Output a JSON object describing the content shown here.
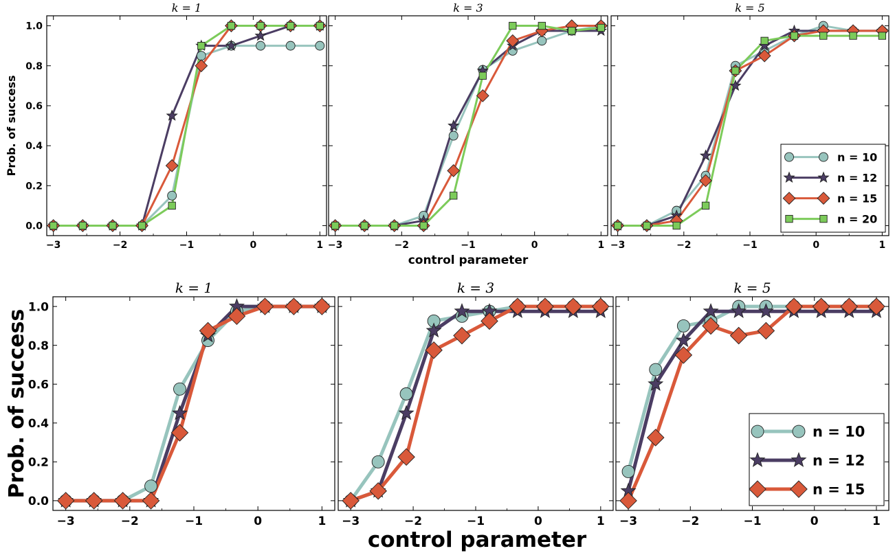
{
  "colors": {
    "n10": "#97c4bd",
    "n12": "#4b3d63",
    "n15": "#d9593a",
    "n20": "#7ccb5a"
  },
  "chart_data": [
    {
      "type": "line",
      "panel": "top-left",
      "title": "k = 1",
      "ylabel": "Prob. of success",
      "xlim": [
        -3.1,
        1.1
      ],
      "ylim": [
        -0.05,
        1.05
      ],
      "x": [
        -3,
        -2.56,
        -2.11,
        -1.67,
        -1.22,
        -0.78,
        -0.33,
        0.11,
        0.56,
        1
      ],
      "series": [
        {
          "name": "n = 10",
          "values": [
            0,
            0,
            0,
            0,
            0.15,
            0.85,
            0.9,
            0.9,
            0.9,
            0.9
          ]
        },
        {
          "name": "n = 12",
          "values": [
            0,
            0,
            0,
            0,
            0.55,
            0.9,
            0.9,
            0.95,
            1.0,
            1.0
          ]
        },
        {
          "name": "n = 15",
          "values": [
            0,
            0,
            0,
            0,
            0.3,
            0.8,
            1.0,
            1.0,
            1.0,
            1.0
          ]
        },
        {
          "name": "n = 20",
          "values": [
            0,
            0,
            0,
            0,
            0.1,
            0.9,
            1.0,
            1.0,
            1.0,
            1.0
          ]
        }
      ]
    },
    {
      "type": "line",
      "panel": "top-middle",
      "title": "k = 3",
      "xlabel": "control parameter",
      "xlim": [
        -3.1,
        1.1
      ],
      "ylim": [
        -0.05,
        1.05
      ],
      "x": [
        -3,
        -2.56,
        -2.11,
        -1.67,
        -1.22,
        -0.78,
        -0.33,
        0.11,
        0.56,
        1
      ],
      "series": [
        {
          "name": "n = 10",
          "values": [
            0,
            0,
            0,
            0.05,
            0.45,
            0.78,
            0.875,
            0.925,
            0.975,
            1.0
          ]
        },
        {
          "name": "n = 12",
          "values": [
            0,
            0,
            0,
            0.025,
            0.5,
            0.775,
            0.9,
            0.975,
            0.975,
            0.975
          ]
        },
        {
          "name": "n = 15",
          "values": [
            0,
            0,
            0,
            0,
            0.275,
            0.65,
            0.925,
            0.975,
            1.0,
            1.0
          ]
        },
        {
          "name": "n = 20",
          "values": [
            0,
            0,
            0,
            0,
            0.15,
            0.75,
            1.0,
            1.0,
            0.975,
            0.99
          ]
        }
      ]
    },
    {
      "type": "line",
      "panel": "top-right",
      "title": "k = 5",
      "legend": "bottom-right",
      "xlim": [
        -3.1,
        1.1
      ],
      "ylim": [
        -0.05,
        1.05
      ],
      "x": [
        -3,
        -2.56,
        -2.11,
        -1.67,
        -1.22,
        -0.78,
        -0.33,
        0.11,
        0.56,
        1
      ],
      "series": [
        {
          "name": "n = 10",
          "values": [
            0,
            0,
            0.075,
            0.25,
            0.8,
            0.875,
            0.95,
            1.0,
            0.975,
            0.975
          ]
        },
        {
          "name": "n = 12",
          "values": [
            0,
            0,
            0.05,
            0.35,
            0.7,
            0.9,
            0.975,
            0.975,
            0.975,
            0.975
          ]
        },
        {
          "name": "n = 15",
          "values": [
            0,
            0,
            0.025,
            0.225,
            0.775,
            0.85,
            0.95,
            0.975,
            0.975,
            0.975
          ]
        },
        {
          "name": "n = 20",
          "values": [
            0,
            0,
            0,
            0.1,
            0.775,
            0.925,
            0.95,
            0.95,
            0.95,
            0.95
          ]
        }
      ]
    },
    {
      "type": "line",
      "panel": "bottom-left",
      "title": "k = 1",
      "ylabel": "Prob. of success",
      "xlim": [
        -3.2,
        1.2
      ],
      "ylim": [
        -0.05,
        1.05
      ],
      "x": [
        -3,
        -2.56,
        -2.11,
        -1.67,
        -1.22,
        -0.78,
        -0.33,
        0.11,
        0.56,
        1
      ],
      "series": [
        {
          "name": "n = 10",
          "values": [
            0,
            0,
            0,
            0.075,
            0.575,
            0.825,
            0.975,
            1.0,
            1.0,
            1.0
          ]
        },
        {
          "name": "n = 12",
          "values": [
            0,
            0,
            0,
            0,
            0.45,
            0.85,
            1.0,
            1.0,
            1.0,
            1.0
          ]
        },
        {
          "name": "n = 15",
          "values": [
            0,
            0,
            0,
            0,
            0.35,
            0.875,
            0.95,
            1.0,
            1.0,
            1.0
          ]
        }
      ]
    },
    {
      "type": "line",
      "panel": "bottom-middle",
      "title": "k = 3",
      "xlabel": "control parameter",
      "xlim": [
        -3.2,
        1.2
      ],
      "ylim": [
        -0.05,
        1.05
      ],
      "x": [
        -3,
        -2.56,
        -2.11,
        -1.67,
        -1.22,
        -0.78,
        -0.33,
        0.11,
        0.56,
        1
      ],
      "series": [
        {
          "name": "n = 10",
          "values": [
            0,
            0.2,
            0.55,
            0.925,
            0.95,
            0.975,
            1.0,
            1.0,
            1.0,
            1.0
          ]
        },
        {
          "name": "n = 12",
          "values": [
            0,
            0.05,
            0.45,
            0.875,
            0.975,
            0.975,
            0.975,
            0.975,
            0.975,
            0.975
          ]
        },
        {
          "name": "n = 15",
          "values": [
            0,
            0.05,
            0.225,
            0.775,
            0.85,
            0.925,
            1.0,
            1.0,
            1.0,
            1.0
          ]
        }
      ]
    },
    {
      "type": "line",
      "panel": "bottom-right",
      "title": "k = 5",
      "legend": "bottom-right",
      "xlim": [
        -3.2,
        1.2
      ],
      "ylim": [
        -0.05,
        1.05
      ],
      "x": [
        -3,
        -2.56,
        -2.11,
        -1.67,
        -1.22,
        -0.78,
        -0.33,
        0.11,
        0.56,
        1
      ],
      "series": [
        {
          "name": "n = 10",
          "values": [
            0.15,
            0.675,
            0.9,
            0.925,
            1.0,
            1.0,
            1.0,
            1.0,
            1.0,
            1.0
          ]
        },
        {
          "name": "n = 12",
          "values": [
            0.05,
            0.6,
            0.825,
            0.975,
            0.975,
            0.975,
            0.975,
            0.975,
            0.975,
            0.975
          ]
        },
        {
          "name": "n = 15",
          "values": [
            0,
            0.325,
            0.75,
            0.9,
            0.85,
            0.875,
            1.0,
            1.0,
            1.0,
            1.0
          ]
        }
      ]
    }
  ],
  "axes": {
    "top_xticks": [
      -3,
      -2,
      -1,
      0,
      1
    ],
    "top_xtick_labels": [
      "−3",
      "−2",
      "−1",
      "0",
      "1"
    ],
    "top_yticks": [
      0.0,
      0.2,
      0.4,
      0.6,
      0.8,
      1.0
    ],
    "top_ytick_labels": [
      "0.0",
      "0.2",
      "0.4",
      "0.6",
      "0.8",
      "1.0"
    ],
    "bottom_xticks": [
      -3,
      -2,
      -1,
      0,
      1
    ],
    "bottom_xtick_labels": [
      "−3",
      "−2",
      "−1",
      "0",
      "1"
    ],
    "bottom_yticks": [
      0.0,
      0.2,
      0.4,
      0.6,
      0.8,
      1.0
    ],
    "bottom_ytick_labels": [
      "0.0",
      "0.2",
      "0.4",
      "0.6",
      "0.8",
      "1.0"
    ]
  }
}
